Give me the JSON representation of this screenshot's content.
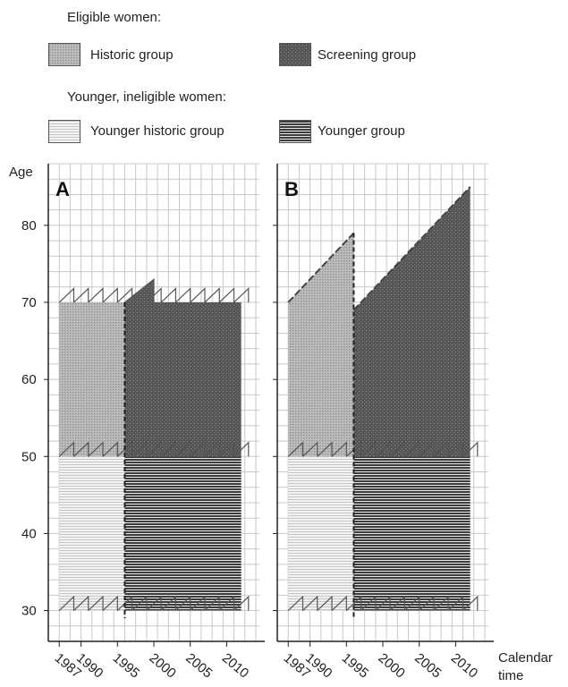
{
  "legend": {
    "eligible_heading": "Eligible women:",
    "historic_group": "Historic group",
    "screening_group": "Screening group",
    "younger_heading": "Younger, ineligible women:",
    "younger_historic_group": "Younger historic group",
    "younger_group": "Younger group"
  },
  "axes": {
    "y_title": "Age",
    "x_title_line1": "Calendar",
    "x_title_line2": "time",
    "y_ticks": [
      "30",
      "40",
      "50",
      "60",
      "70",
      "80"
    ],
    "x_ticks": [
      "1987",
      "1990",
      "1995",
      "2000",
      "2005",
      "2010"
    ]
  },
  "panels": [
    {
      "label": "A",
      "regions": [
        {
          "group": "historic",
          "x": [
            1987,
            1996
          ],
          "y_bottom": 50,
          "y_top": 70
        },
        {
          "group": "screening",
          "x": [
            1996,
            2012
          ],
          "y_bottom": 50,
          "y_top": 70
        },
        {
          "group": "younger_historic",
          "x": [
            1987,
            1996
          ],
          "y_bottom": 30,
          "y_top": 50
        },
        {
          "group": "younger",
          "x": [
            1996,
            2012
          ],
          "y_bottom": 30,
          "y_top": 50
        }
      ],
      "cutover_year": 1996
    },
    {
      "label": "B",
      "regions": [
        {
          "group": "historic",
          "x": [
            1987,
            1996
          ],
          "y_bottom": 50,
          "y_top_start": 70,
          "y_top_end": 79
        },
        {
          "group": "screening",
          "x": [
            1996,
            2012
          ],
          "y_bottom": 50,
          "y_top_start": 69,
          "y_top_end": 85
        },
        {
          "group": "younger_historic",
          "x": [
            1987,
            1996
          ],
          "y_bottom": 30,
          "y_top": 50
        },
        {
          "group": "younger",
          "x": [
            1996,
            2012
          ],
          "y_bottom": 30,
          "y_top": 50
        }
      ],
      "cutover_year": 1996
    }
  ],
  "colors": {
    "historic": "#a7a7a7",
    "screening": "#5e5e5e",
    "younger_historic": "#ececec",
    "younger": "#5a5a5a",
    "grid": "#c8c8c8",
    "axis": "#222222"
  }
}
